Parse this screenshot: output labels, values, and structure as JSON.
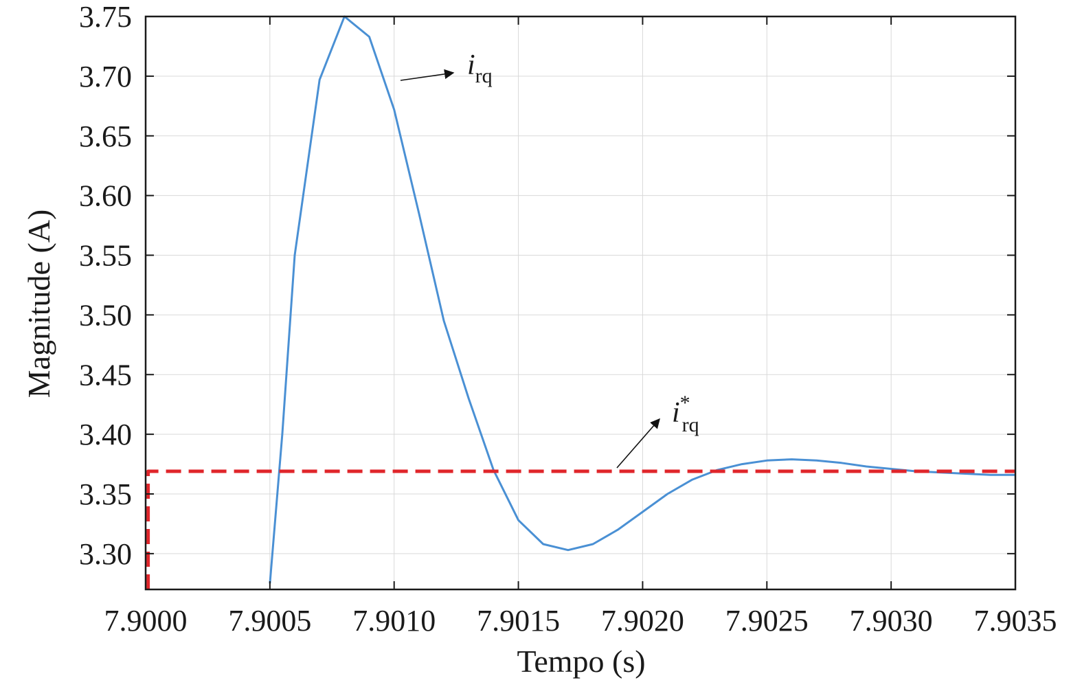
{
  "chart_data": {
    "type": "line",
    "xlabel": "Tempo (s)",
    "ylabel": "Magnitude (A)",
    "xlim": [
      7.9,
      7.9035
    ],
    "ylim": [
      3.27,
      3.75
    ],
    "xticks": [
      7.9,
      7.9005,
      7.901,
      7.9015,
      7.902,
      7.9025,
      7.903,
      7.9035
    ],
    "xtick_labels": [
      "7.9000",
      "7.9005",
      "7.9010",
      "7.9015",
      "7.9020",
      "7.9025",
      "7.9030",
      "7.9035"
    ],
    "yticks": [
      3.3,
      3.35,
      3.4,
      3.45,
      3.5,
      3.55,
      3.6,
      3.65,
      3.7,
      3.75
    ],
    "ytick_labels": [
      "3.30",
      "3.35",
      "3.40",
      "3.45",
      "3.50",
      "3.55",
      "3.60",
      "3.65",
      "3.70",
      "3.75"
    ],
    "grid": true,
    "series": [
      {
        "name": "i_rq",
        "color": "#4a90d4",
        "style": "solid",
        "x": [
          7.9005,
          7.90055,
          7.9006,
          7.9007,
          7.9008,
          7.9009,
          7.901,
          7.9011,
          7.9012,
          7.9013,
          7.9014,
          7.9015,
          7.9016,
          7.9017,
          7.9018,
          7.9019,
          7.902,
          7.9021,
          7.9022,
          7.9023,
          7.9024,
          7.9025,
          7.9026,
          7.9027,
          7.9028,
          7.9029,
          7.903,
          7.9031,
          7.9032,
          7.9033,
          7.9034,
          7.9035
        ],
        "y": [
          3.275,
          3.4,
          3.55,
          3.697,
          3.75,
          3.733,
          3.672,
          3.585,
          3.495,
          3.43,
          3.37,
          3.328,
          3.308,
          3.303,
          3.308,
          3.32,
          3.335,
          3.35,
          3.362,
          3.37,
          3.375,
          3.378,
          3.379,
          3.378,
          3.376,
          3.373,
          3.371,
          3.369,
          3.368,
          3.367,
          3.366,
          3.366
        ]
      },
      {
        "name": "i_rq*",
        "color": "#e0262b",
        "style": "dashed",
        "x": [
          7.90001,
          7.90001,
          7.9035
        ],
        "y": [
          3.27,
          3.369,
          3.369
        ]
      }
    ],
    "annotations": [
      {
        "main": "i",
        "sub": "rq",
        "sup": ""
      },
      {
        "main": "i",
        "sub": "rq",
        "sup": "*"
      }
    ]
  }
}
